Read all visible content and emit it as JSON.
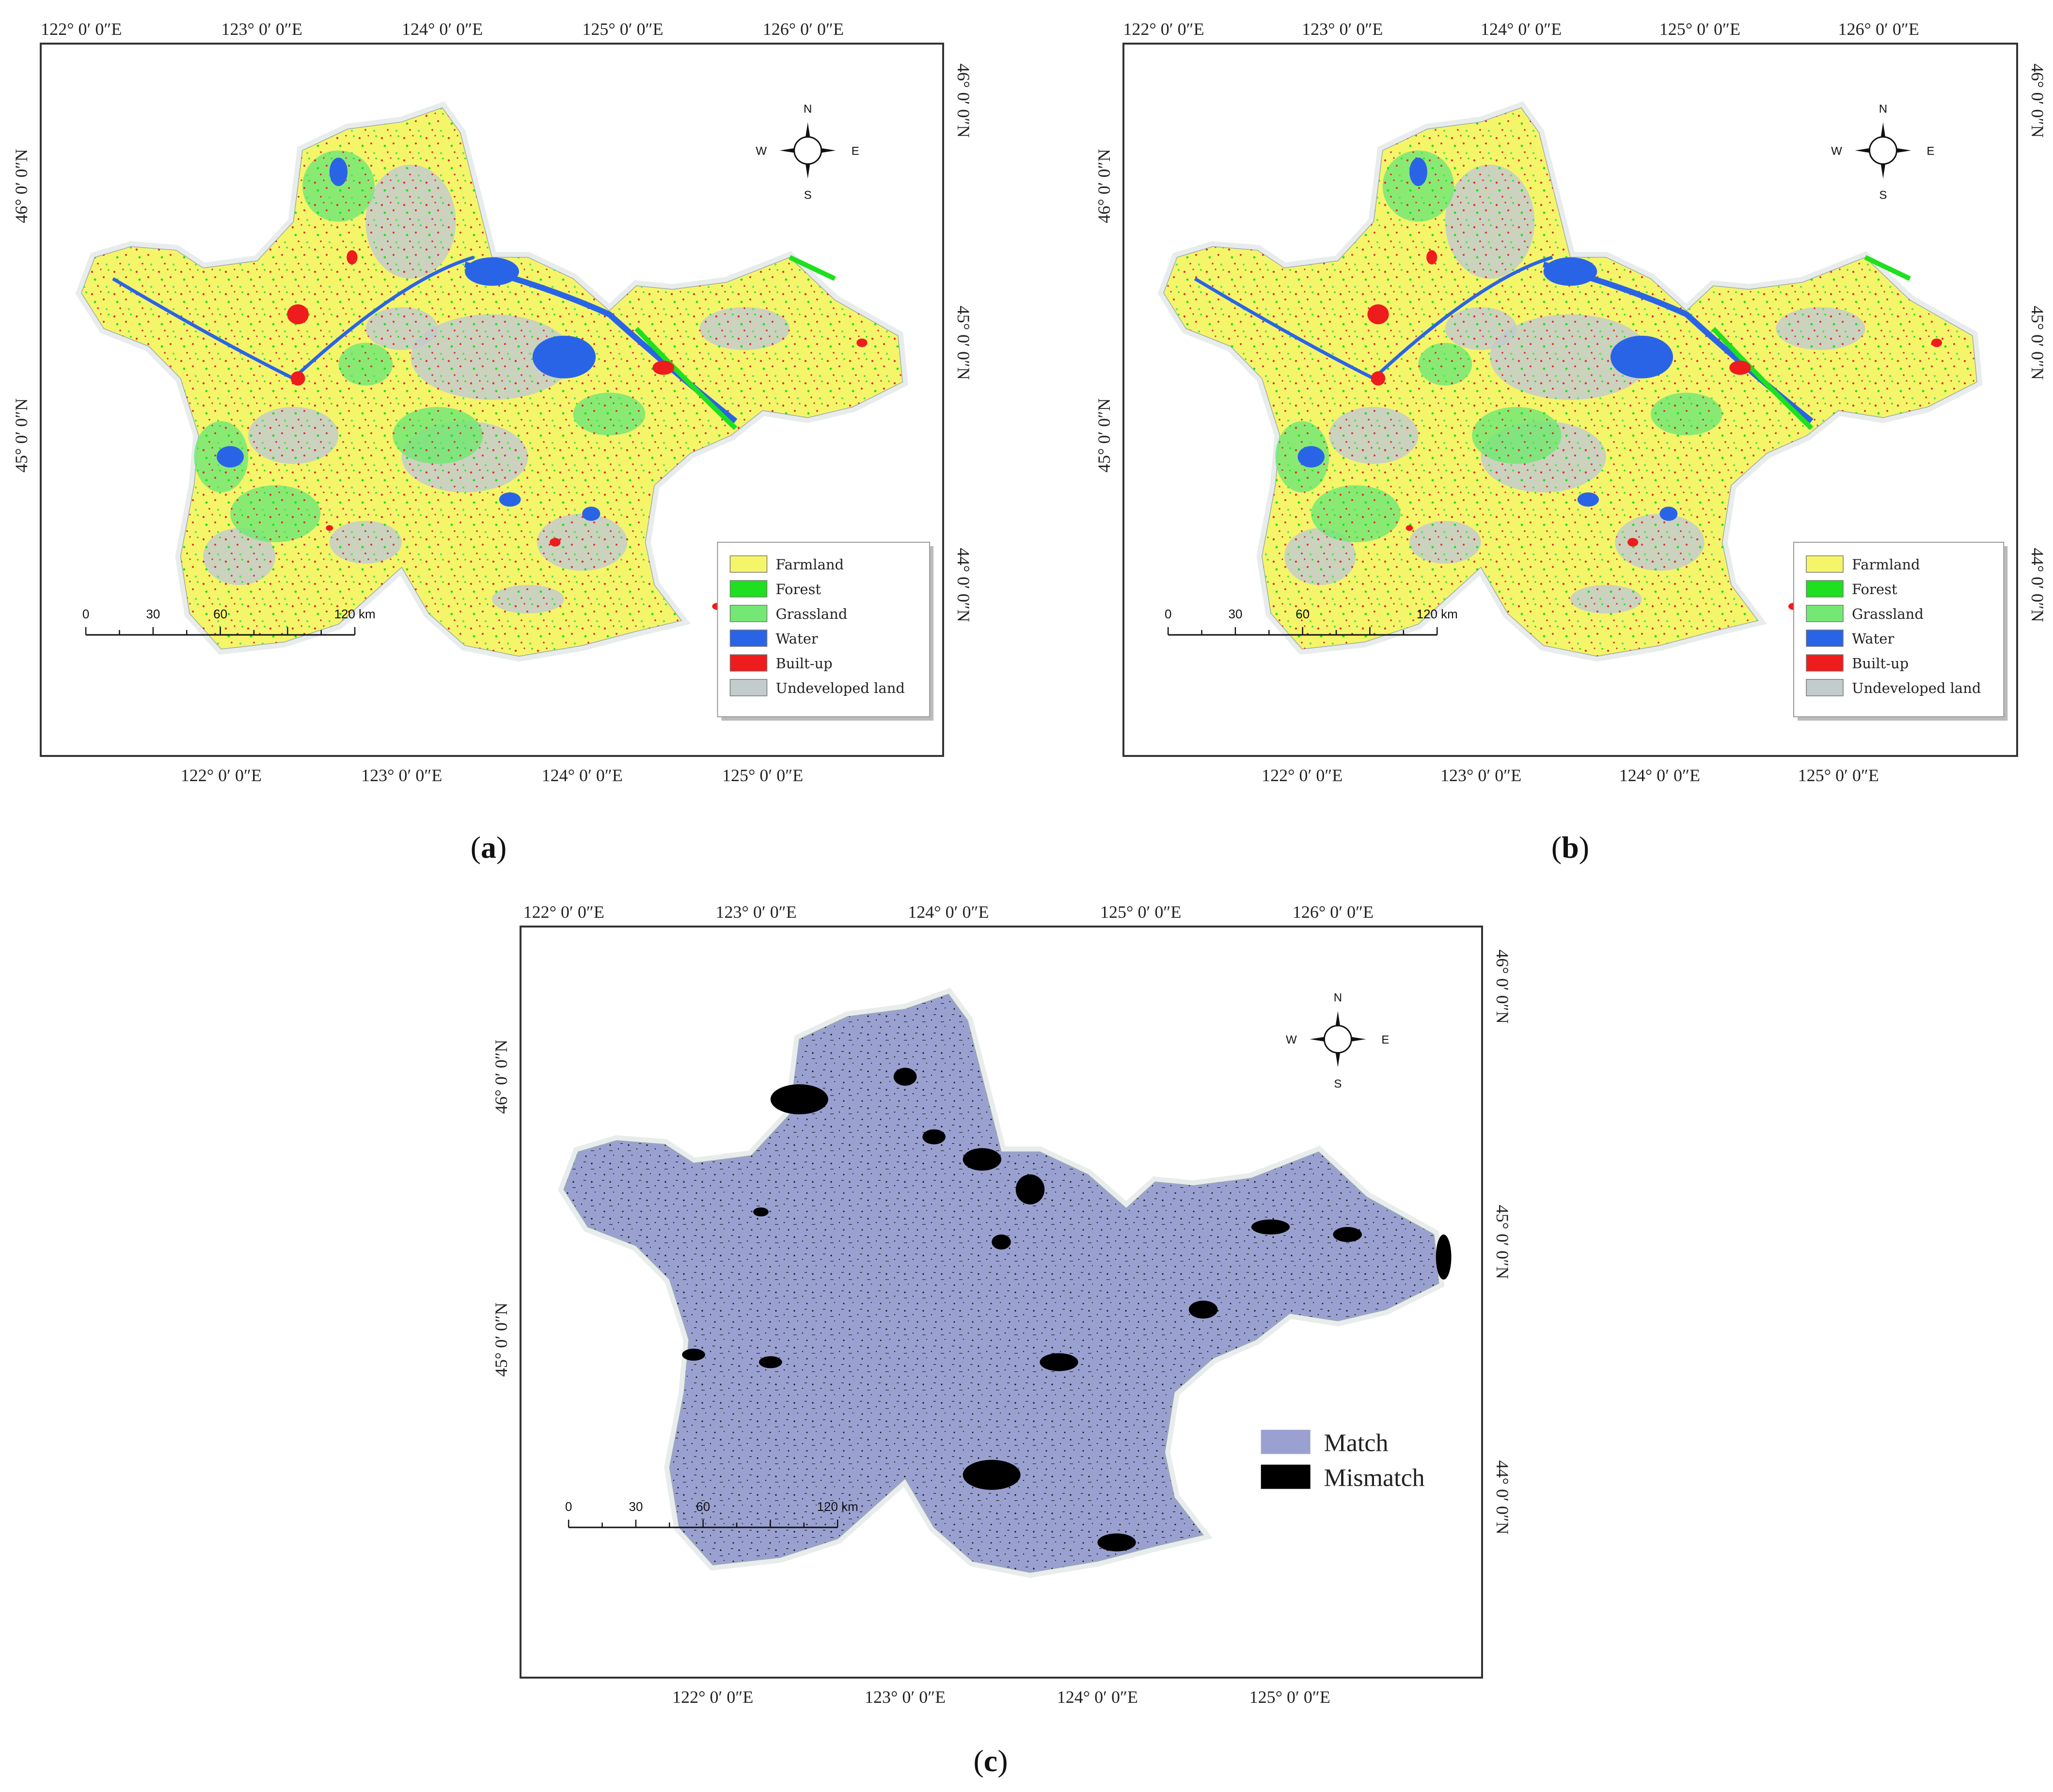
{
  "panels": [
    {
      "id": "a",
      "label_open": "(",
      "label_letter": "a",
      "label_close": ")",
      "top_lon_labels": [
        "122° 0′ 0″E",
        "123° 0′ 0″E",
        "124° 0′ 0″E",
        "125° 0′ 0″E",
        "126° 0′ 0″E"
      ],
      "bottom_lon_labels": [
        "122° 0′ 0″E",
        "123° 0′ 0″E",
        "124° 0′ 0″E",
        "125° 0′ 0″E"
      ],
      "left_lat_labels": [
        "46° 0′ 0″N",
        "45° 0′ 0″N"
      ],
      "right_lat_labels": [
        "46° 0′ 0″N",
        "45° 0′ 0″N",
        "44° 0′ 0″N"
      ],
      "legend": [
        {
          "label": "Farmland",
          "color": "#f5f56a"
        },
        {
          "label": "Forest",
          "color": "#1ee01e"
        },
        {
          "label": "Grassland",
          "color": "#74e874"
        },
        {
          "label": "Water",
          "color": "#2a64e6"
        },
        {
          "label": "Built-up",
          "color": "#ee1c1c"
        },
        {
          "label": "Undeveloped land",
          "color": "#c3cbcb"
        }
      ],
      "scale": [
        "0",
        "30",
        "60",
        "120 km"
      ],
      "compass": {
        "n": "N",
        "s": "S",
        "e": "E",
        "w": "W"
      }
    },
    {
      "id": "b",
      "label_open": "(",
      "label_letter": "b",
      "label_close": ")",
      "top_lon_labels": [
        "122° 0′ 0″E",
        "123° 0′ 0″E",
        "124° 0′ 0″E",
        "125° 0′ 0″E",
        "126° 0′ 0″E"
      ],
      "bottom_lon_labels": [
        "122° 0′ 0″E",
        "123° 0′ 0″E",
        "124° 0′ 0″E",
        "125° 0′ 0″E"
      ],
      "left_lat_labels": [
        "46° 0′ 0″N",
        "45° 0′ 0″N"
      ],
      "right_lat_labels": [
        "46° 0′ 0″N",
        "45° 0′ 0″N",
        "44° 0′ 0″N"
      ],
      "legend": [
        {
          "label": "Farmland",
          "color": "#f5f56a"
        },
        {
          "label": "Forest",
          "color": "#1ee01e"
        },
        {
          "label": "Grassland",
          "color": "#74e874"
        },
        {
          "label": "Water",
          "color": "#2a64e6"
        },
        {
          "label": "Built-up",
          "color": "#ee1c1c"
        },
        {
          "label": "Undeveloped land",
          "color": "#c3cbcb"
        }
      ],
      "scale": [
        "0",
        "30",
        "60",
        "120 km"
      ],
      "compass": {
        "n": "N",
        "s": "S",
        "e": "E",
        "w": "W"
      }
    },
    {
      "id": "c",
      "label_open": "(",
      "label_letter": "c",
      "label_close": ")",
      "top_lon_labels": [
        "122° 0′ 0″E",
        "123° 0′ 0″E",
        "124° 0′ 0″E",
        "125° 0′ 0″E",
        "126° 0′ 0″E"
      ],
      "bottom_lon_labels": [
        "122° 0′ 0″E",
        "123° 0′ 0″E",
        "124° 0′ 0″E",
        "125° 0′ 0″E"
      ],
      "left_lat_labels": [
        "46° 0′ 0″N",
        "45° 0′ 0″N"
      ],
      "right_lat_labels": [
        "46° 0′ 0″N",
        "45° 0′ 0″N",
        "44° 0′ 0″N"
      ],
      "legend": [
        {
          "label": "Match",
          "color": "#9aa1d1"
        },
        {
          "label": "Mismatch",
          "color": "#000000"
        }
      ],
      "scale": [
        "0",
        "30",
        "60",
        "120 km"
      ],
      "compass": {
        "n": "N",
        "s": "S",
        "e": "E",
        "w": "W"
      }
    }
  ]
}
